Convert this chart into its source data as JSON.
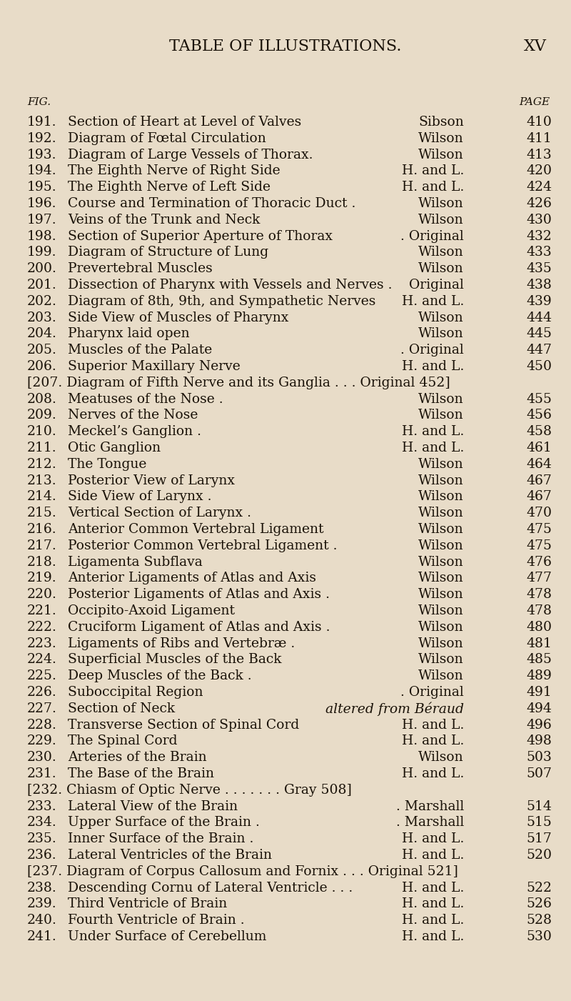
{
  "bg_color": "#e8dcc8",
  "title": "TABLE OF ILLUSTRATIONS.",
  "title_right": "XV",
  "col_left": "FIG.",
  "col_right": "PAGE",
  "entries": [
    {
      "num": "191.",
      "desc": "Section of Heart at Level of Valves",
      "source": "Sibson",
      "page": "410",
      "bracket": false,
      "italic_source": false
    },
    {
      "num": "192.",
      "desc": "Diagram of Fœtal Circulation",
      "source": "Wilson",
      "page": "411",
      "bracket": false,
      "italic_source": false
    },
    {
      "num": "193.",
      "desc": "Diagram of Large Vessels of Thorax.",
      "source": "Wilson",
      "page": "413",
      "bracket": false,
      "italic_source": false
    },
    {
      "num": "194.",
      "desc": "The Eighth Nerve of Right Side",
      "source": "H. and L.",
      "page": "420",
      "bracket": false,
      "italic_source": false
    },
    {
      "num": "195.",
      "desc": "The Eighth Nerve of Left Side",
      "source": "H. and L.",
      "page": "424",
      "bracket": false,
      "italic_source": false
    },
    {
      "num": "196.",
      "desc": "Course and Termination of Thoracic Duct .",
      "source": "Wilson",
      "page": "426",
      "bracket": false,
      "italic_source": false
    },
    {
      "num": "197.",
      "desc": "Veins of the Trunk and Neck",
      "source": "Wilson",
      "page": "430",
      "bracket": false,
      "italic_source": false
    },
    {
      "num": "198.",
      "desc": "Section of Superior Aperture of Thorax",
      "source": ". Original",
      "page": "432",
      "bracket": false,
      "italic_source": false
    },
    {
      "num": "199.",
      "desc": "Diagram of Structure of Lung",
      "source": "Wilson",
      "page": "433",
      "bracket": false,
      "italic_source": false
    },
    {
      "num": "200.",
      "desc": "Prevertebral Muscles",
      "source": "Wilson",
      "page": "435",
      "bracket": false,
      "italic_source": false
    },
    {
      "num": "201.",
      "desc": "Dissection of Pharynx with Vessels and Nerves .",
      "source": "Original",
      "page": "438",
      "bracket": false,
      "italic_source": false
    },
    {
      "num": "202.",
      "desc": "Diagram of 8th, 9th, and Sympathetic Nerves",
      "source": "H. and L.",
      "page": "439",
      "bracket": false,
      "italic_source": false
    },
    {
      "num": "203.",
      "desc": "Side View of Muscles of Pharynx",
      "source": "Wilson",
      "page": "444",
      "bracket": false,
      "italic_source": false
    },
    {
      "num": "204.",
      "desc": "Pharynx laid open",
      "source": "Wilson",
      "page": "445",
      "bracket": false,
      "italic_source": false
    },
    {
      "num": "205.",
      "desc": "Muscles of the Palate",
      "source": ". Original",
      "page": "447",
      "bracket": false,
      "italic_source": false
    },
    {
      "num": "206.",
      "desc": "Superior Maxillary Nerve",
      "source": "H. and L.",
      "page": "450",
      "bracket": false,
      "italic_source": false
    },
    {
      "num": "207.",
      "desc": "Diagram of Fifth Nerve and its Ganglia . . . Original 452",
      "source": "",
      "page": "",
      "bracket": true,
      "italic_source": false
    },
    {
      "num": "208.",
      "desc": "Meatuses of the Nose .",
      "source": "Wilson",
      "page": "455",
      "bracket": false,
      "italic_source": false
    },
    {
      "num": "209.",
      "desc": "Nerves of the Nose",
      "source": "Wilson",
      "page": "456",
      "bracket": false,
      "italic_source": false
    },
    {
      "num": "210.",
      "desc": "Meckel’s Ganglion .",
      "source": "H. and L.",
      "page": "458",
      "bracket": false,
      "italic_source": false
    },
    {
      "num": "211.",
      "desc": "Otic Ganglion",
      "source": "H. and L.",
      "page": "461",
      "bracket": false,
      "italic_source": false
    },
    {
      "num": "212.",
      "desc": "The Tongue",
      "source": "Wilson",
      "page": "464",
      "bracket": false,
      "italic_source": false
    },
    {
      "num": "213.",
      "desc": "Posterior View of Larynx",
      "source": "Wilson",
      "page": "467",
      "bracket": false,
      "italic_source": false
    },
    {
      "num": "214.",
      "desc": "Side View of Larynx .",
      "source": "Wilson",
      "page": "467",
      "bracket": false,
      "italic_source": false
    },
    {
      "num": "215.",
      "desc": "Vertical Section of Larynx .",
      "source": "Wilson",
      "page": "470",
      "bracket": false,
      "italic_source": false
    },
    {
      "num": "216.",
      "desc": "Anterior Common Vertebral Ligament",
      "source": "Wilson",
      "page": "475",
      "bracket": false,
      "italic_source": false
    },
    {
      "num": "217.",
      "desc": "Posterior Common Vertebral Ligament .",
      "source": "Wilson",
      "page": "475",
      "bracket": false,
      "italic_source": false
    },
    {
      "num": "218.",
      "desc": "Ligamenta Subflava",
      "source": "Wilson",
      "page": "476",
      "bracket": false,
      "italic_source": false
    },
    {
      "num": "219.",
      "desc": "Anterior Ligaments of Atlas and Axis",
      "source": "Wilson",
      "page": "477",
      "bracket": false,
      "italic_source": false
    },
    {
      "num": "220.",
      "desc": "Posterior Ligaments of Atlas and Axis .",
      "source": "Wilson",
      "page": "478",
      "bracket": false,
      "italic_source": false
    },
    {
      "num": "221.",
      "desc": "Occipito-Axoid Ligament",
      "source": "Wilson",
      "page": "478",
      "bracket": false,
      "italic_source": false
    },
    {
      "num": "222.",
      "desc": "Cruciform Ligament of Atlas and Axis .",
      "source": "Wilson",
      "page": "480",
      "bracket": false,
      "italic_source": false
    },
    {
      "num": "223.",
      "desc": "Ligaments of Ribs and Vertebræ .",
      "source": "Wilson",
      "page": "481",
      "bracket": false,
      "italic_source": false
    },
    {
      "num": "224.",
      "desc": "Superficial Muscles of the Back",
      "source": "Wilson",
      "page": "485",
      "bracket": false,
      "italic_source": false
    },
    {
      "num": "225.",
      "desc": "Deep Muscles of the Back .",
      "source": "Wilson",
      "page": "489",
      "bracket": false,
      "italic_source": false
    },
    {
      "num": "226.",
      "desc": "Suboccipital Region",
      "source": ". Original",
      "page": "491",
      "bracket": false,
      "italic_source": false
    },
    {
      "num": "227.",
      "desc": "Section of Neck",
      "source": "altered from Béraud",
      "page": "494",
      "bracket": false,
      "italic_source": true
    },
    {
      "num": "228.",
      "desc": "Transverse Section of Spinal Cord",
      "source": "H. and L.",
      "page": "496",
      "bracket": false,
      "italic_source": false
    },
    {
      "num": "229.",
      "desc": "The Spinal Cord",
      "source": "H. and L.",
      "page": "498",
      "bracket": false,
      "italic_source": false
    },
    {
      "num": "230.",
      "desc": "Arteries of the Brain",
      "source": "Wilson",
      "page": "503",
      "bracket": false,
      "italic_source": false
    },
    {
      "num": "231.",
      "desc": "The Base of the Brain",
      "source": "H. and L.",
      "page": "507",
      "bracket": false,
      "italic_source": false
    },
    {
      "num": "232.",
      "desc": "Chiasm of Optic Nerve . . . . . . . Gray 508",
      "source": "",
      "page": "",
      "bracket": true,
      "italic_source": false
    },
    {
      "num": "233.",
      "desc": "Lateral View of the Brain",
      "source": ". Marshall",
      "page": "514",
      "bracket": false,
      "italic_source": false
    },
    {
      "num": "234.",
      "desc": "Upper Surface of the Brain .",
      "source": ". Marshall",
      "page": "515",
      "bracket": false,
      "italic_source": false
    },
    {
      "num": "235.",
      "desc": "Inner Surface of the Brain .",
      "source": "H. and L.",
      "page": "517",
      "bracket": false,
      "italic_source": false
    },
    {
      "num": "236.",
      "desc": "Lateral Ventricles of the Brain",
      "source": "H. and L.",
      "page": "520",
      "bracket": false,
      "italic_source": false
    },
    {
      "num": "237.",
      "desc": "Diagram of Corpus Callosum and Fornix . . . Original 521",
      "source": "",
      "page": "",
      "bracket": true,
      "italic_source": false
    },
    {
      "num": "238.",
      "desc": "Descending Cornu of Lateral Ventricle . . .",
      "source": "H. and L.",
      "page": "522",
      "bracket": false,
      "italic_source": false
    },
    {
      "num": "239.",
      "desc": "Third Ventricle of Brain",
      "source": "H. and L.",
      "page": "526",
      "bracket": false,
      "italic_source": false
    },
    {
      "num": "240.",
      "desc": "Fourth Ventricle of Brain .",
      "source": "H. and L.",
      "page": "528",
      "bracket": false,
      "italic_source": false
    },
    {
      "num": "241.",
      "desc": "Under Surface of Cerebellum",
      "source": "H. and L.",
      "page": "530",
      "bracket": false,
      "italic_source": false
    }
  ],
  "text_color": "#1a1208",
  "font_size": 13.5,
  "title_font_size": 16,
  "header_font_size": 11
}
